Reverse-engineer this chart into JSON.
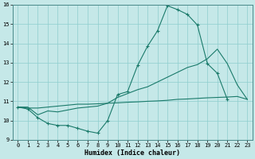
{
  "x": [
    0,
    1,
    2,
    3,
    4,
    5,
    6,
    7,
    8,
    9,
    10,
    11,
    12,
    13,
    14,
    15,
    16,
    17,
    18,
    19,
    20,
    21,
    22,
    23
  ],
  "line1": [
    10.7,
    10.6,
    10.15,
    9.85,
    9.75,
    9.75,
    9.6,
    9.45,
    9.35,
    10.0,
    11.35,
    11.5,
    12.85,
    13.85,
    14.65,
    15.95,
    15.75,
    15.5,
    14.95,
    12.95,
    12.45,
    11.1,
    null,
    null
  ],
  "line2": [
    10.7,
    10.7,
    10.3,
    10.5,
    10.45,
    10.55,
    10.65,
    10.7,
    10.75,
    10.9,
    11.2,
    11.4,
    11.6,
    11.75,
    12.0,
    12.25,
    12.5,
    12.75,
    12.9,
    13.2,
    13.7,
    12.95,
    11.85,
    11.1
  ],
  "line3": [
    10.7,
    10.65,
    10.65,
    10.7,
    10.75,
    10.8,
    10.85,
    10.85,
    10.87,
    10.9,
    10.92,
    10.95,
    10.97,
    11.0,
    11.02,
    11.05,
    11.1,
    11.12,
    11.15,
    11.18,
    11.2,
    11.22,
    11.25,
    11.1
  ],
  "color": "#1a7a6a",
  "bg_color": "#c5e8e8",
  "grid_color": "#8ecece",
  "xlabel": "Humidex (Indice chaleur)",
  "xlim": [
    -0.5,
    23.5
  ],
  "ylim": [
    9,
    16
  ],
  "yticks": [
    9,
    10,
    11,
    12,
    13,
    14,
    15,
    16
  ],
  "xticks": [
    0,
    1,
    2,
    3,
    4,
    5,
    6,
    7,
    8,
    9,
    10,
    11,
    12,
    13,
    14,
    15,
    16,
    17,
    18,
    19,
    20,
    21,
    22,
    23
  ],
  "xlabel_fontsize": 6.0,
  "tick_fontsize": 5.0
}
